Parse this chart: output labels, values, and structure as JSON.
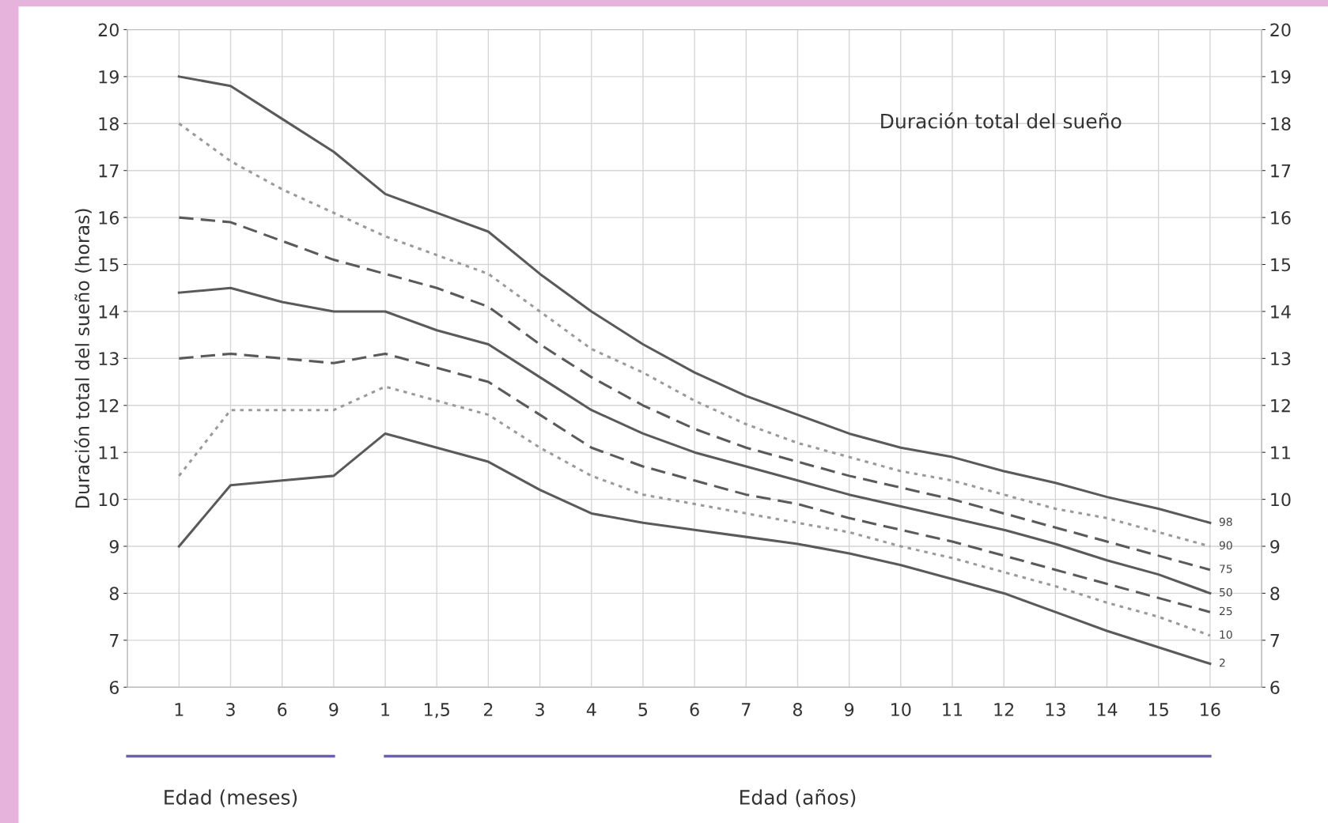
{
  "chart_data": {
    "type": "line",
    "title": "Duración total del sueño",
    "ylabel": "Duración total del sueño (horas)",
    "categories": [
      "1",
      "3",
      "6",
      "9",
      "1",
      "1,5",
      "2",
      "3",
      "4",
      "5",
      "6",
      "7",
      "8",
      "9",
      "10",
      "11",
      "12",
      "13",
      "14",
      "15",
      "16"
    ],
    "series": [
      {
        "name": "98",
        "color": "#5a5a5a",
        "line_style": "solid",
        "values": [
          19.0,
          18.8,
          18.1,
          17.4,
          16.5,
          16.1,
          15.7,
          14.8,
          14.0,
          13.3,
          12.7,
          12.2,
          11.8,
          11.4,
          11.1,
          10.9,
          10.6,
          10.35,
          10.05,
          9.8,
          9.5
        ]
      },
      {
        "name": "90",
        "color": "#9a9a9a",
        "line_style": "dotted",
        "values": [
          18.0,
          17.2,
          16.6,
          16.1,
          15.6,
          15.2,
          14.8,
          14.0,
          13.2,
          12.7,
          12.1,
          11.6,
          11.2,
          10.9,
          10.6,
          10.4,
          10.1,
          9.8,
          9.6,
          9.3,
          9.0
        ]
      },
      {
        "name": "75",
        "color": "#5a5a5a",
        "line_style": "dashed",
        "values": [
          16.0,
          15.9,
          15.5,
          15.1,
          14.8,
          14.5,
          14.1,
          13.3,
          12.6,
          12.0,
          11.5,
          11.1,
          10.8,
          10.5,
          10.25,
          10.0,
          9.7,
          9.4,
          9.1,
          8.8,
          8.5
        ]
      },
      {
        "name": "50",
        "color": "#5a5a5a",
        "line_style": "solid",
        "values": [
          14.4,
          14.5,
          14.2,
          14.0,
          14.0,
          13.6,
          13.3,
          12.6,
          11.9,
          11.4,
          11.0,
          10.7,
          10.4,
          10.1,
          9.85,
          9.6,
          9.35,
          9.05,
          8.7,
          8.4,
          8.0
        ]
      },
      {
        "name": "25",
        "color": "#5a5a5a",
        "line_style": "dashed",
        "values": [
          13.0,
          13.1,
          13.0,
          12.9,
          13.1,
          12.8,
          12.5,
          11.8,
          11.1,
          10.7,
          10.4,
          10.1,
          9.9,
          9.6,
          9.35,
          9.1,
          8.8,
          8.5,
          8.2,
          7.9,
          7.6
        ]
      },
      {
        "name": "10",
        "color": "#9a9a9a",
        "line_style": "dotted",
        "values": [
          10.5,
          11.9,
          11.9,
          11.9,
          12.4,
          12.1,
          11.8,
          11.1,
          10.5,
          10.1,
          9.9,
          9.7,
          9.5,
          9.3,
          9.0,
          8.75,
          8.45,
          8.15,
          7.8,
          7.5,
          7.1
        ]
      },
      {
        "name": "2",
        "color": "#5a5a5a",
        "line_style": "solid",
        "values": [
          9.0,
          10.3,
          10.4,
          10.5,
          11.4,
          11.1,
          10.8,
          10.2,
          9.7,
          9.5,
          9.35,
          9.2,
          9.05,
          8.85,
          8.6,
          8.3,
          8.0,
          7.6,
          7.2,
          6.85,
          6.5
        ]
      }
    ],
    "ylim": [
      6,
      20
    ],
    "yticks": [
      6,
      7,
      8,
      9,
      10,
      11,
      12,
      13,
      14,
      15,
      16,
      17,
      18,
      19,
      20
    ],
    "y2lim": [
      6,
      20
    ],
    "y2ticks": [
      6,
      7,
      8,
      9,
      10,
      11,
      12,
      13,
      14,
      15,
      16,
      17,
      18,
      19,
      20
    ],
    "annotations": [
      "Edad (meses)",
      "Edad (años)"
    ],
    "grid": true,
    "legend": false,
    "marker": "none"
  }
}
